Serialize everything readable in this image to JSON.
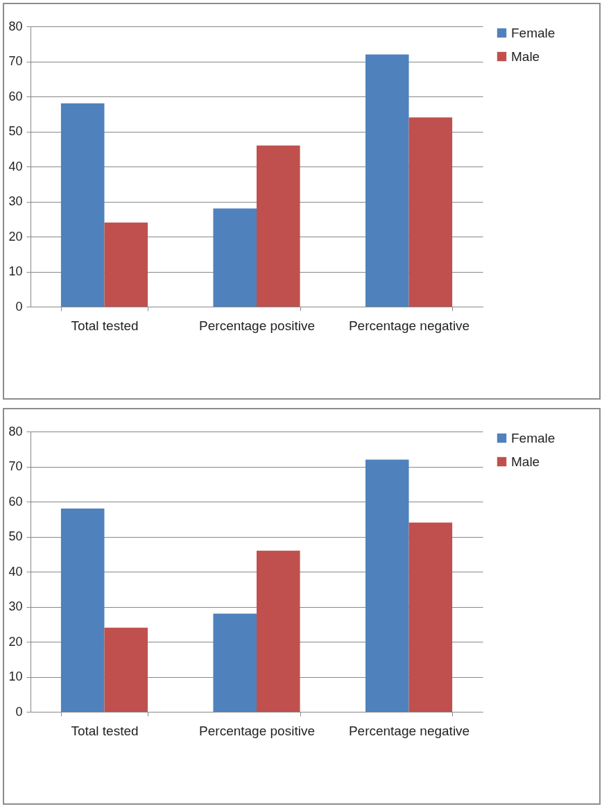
{
  "chart_data": [
    {
      "type": "bar",
      "categories": [
        "Total tested",
        "Percentage positive",
        "Percentage negative"
      ],
      "series": [
        {
          "name": "Female",
          "color": "#4f81bd",
          "values": [
            58,
            28,
            72
          ]
        },
        {
          "name": "Male",
          "color": "#c0504d",
          "values": [
            24,
            46,
            54
          ]
        }
      ],
      "ylim": [
        0,
        80
      ],
      "yticks": [
        0,
        10,
        20,
        30,
        40,
        50,
        60,
        70,
        80
      ],
      "grid": "y",
      "legend": "right"
    },
    {
      "type": "bar",
      "categories": [
        "Total tested",
        "Percentage positive",
        "Percentage negative"
      ],
      "series": [
        {
          "name": "Female",
          "color": "#4f81bd",
          "values": [
            58,
            28,
            72
          ]
        },
        {
          "name": "Male",
          "color": "#c0504d",
          "values": [
            24,
            46,
            54
          ]
        }
      ],
      "ylim": [
        0,
        80
      ],
      "yticks": [
        0,
        10,
        20,
        30,
        40,
        50,
        60,
        70,
        80
      ],
      "grid": "y",
      "legend": "right"
    }
  ]
}
